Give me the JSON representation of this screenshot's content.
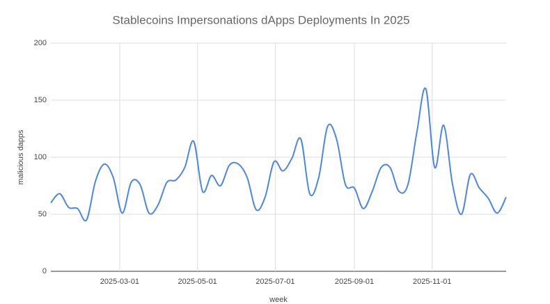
{
  "chart_data": {
    "type": "line",
    "title": "Stablecoins Impersonations dApps Deployments In 2025",
    "x_label": "week",
    "y_label": "malicious dapps",
    "x": [
      "2025-01-06",
      "2025-01-13",
      "2025-01-20",
      "2025-01-27",
      "2025-02-03",
      "2025-02-10",
      "2025-02-17",
      "2025-02-24",
      "2025-03-03",
      "2025-03-10",
      "2025-03-17",
      "2025-03-24",
      "2025-03-31",
      "2025-04-07",
      "2025-04-14",
      "2025-04-21",
      "2025-04-28",
      "2025-05-05",
      "2025-05-12",
      "2025-05-19",
      "2025-05-26",
      "2025-06-02",
      "2025-06-09",
      "2025-06-16",
      "2025-06-23",
      "2025-06-30",
      "2025-07-07",
      "2025-07-14",
      "2025-07-21",
      "2025-07-28",
      "2025-08-04",
      "2025-08-11",
      "2025-08-18",
      "2025-08-25",
      "2025-09-01",
      "2025-09-08",
      "2025-09-15",
      "2025-09-22",
      "2025-09-29",
      "2025-10-06",
      "2025-10-13",
      "2025-10-20",
      "2025-10-27",
      "2025-11-03",
      "2025-11-10",
      "2025-11-17",
      "2025-11-24",
      "2025-12-01",
      "2025-12-08",
      "2025-12-15",
      "2025-12-22",
      "2025-12-29"
    ],
    "series": [
      {
        "name": "malicious dapps",
        "color": "#4a86e8",
        "values": [
          60,
          68,
          56,
          55,
          45,
          79,
          94,
          82,
          51,
          78,
          76,
          51,
          58,
          78,
          80,
          91,
          114,
          70,
          84,
          75,
          93,
          94,
          82,
          54,
          65,
          96,
          88,
          99,
          116,
          68,
          82,
          127,
          116,
          76,
          73,
          55,
          70,
          91,
          91,
          70,
          76,
          122,
          160,
          91,
          128,
          76,
          50,
          85,
          73,
          64,
          51,
          65
        ]
      }
    ],
    "xlim": [
      "2025-01-06",
      "2025-12-29"
    ],
    "xticks": [
      "2025-03-01",
      "2025-05-01",
      "2025-07-01",
      "2025-09-01",
      "2025-11-01"
    ],
    "ylim": [
      0,
      200
    ],
    "yticks": [
      0,
      50,
      100,
      150,
      200
    ],
    "grid": true
  }
}
